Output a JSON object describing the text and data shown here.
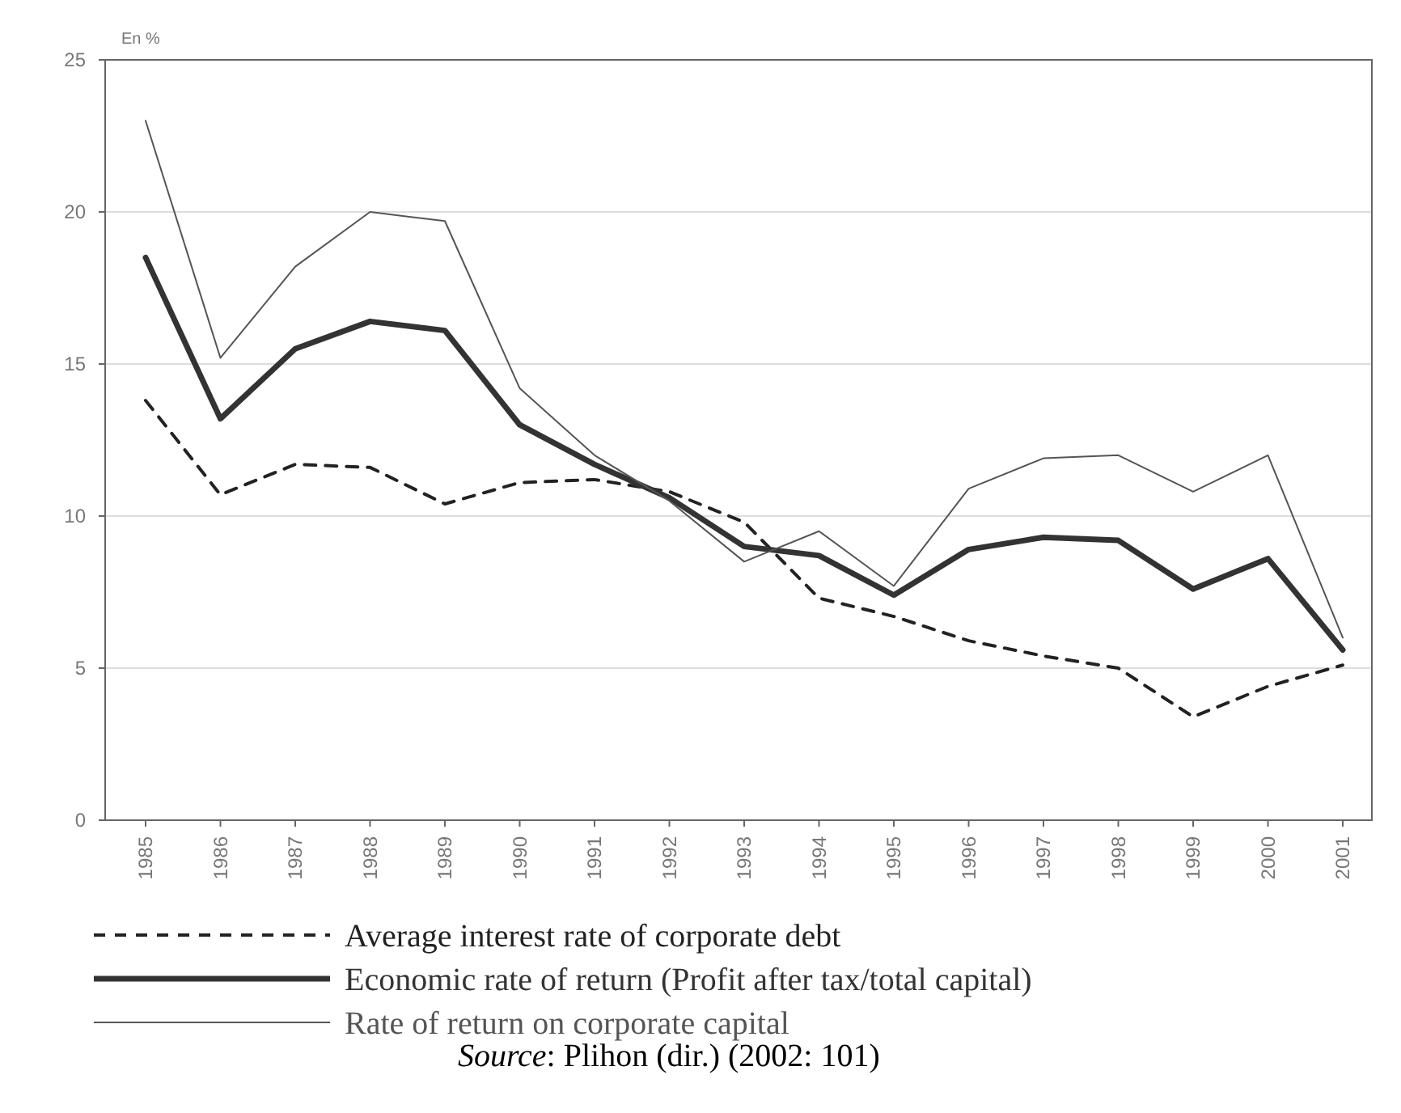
{
  "chart_data": {
    "type": "line",
    "ylabel": "En %",
    "categories": [
      "1985",
      "1986",
      "1987",
      "1988",
      "1989",
      "1990",
      "1991",
      "1992",
      "1993",
      "1994",
      "1995",
      "1996",
      "1997",
      "1998",
      "1999",
      "2000",
      "2001"
    ],
    "series": [
      {
        "name": "Average interest rate of corporate debt",
        "color": "#222222",
        "line_style": "dashed",
        "values": [
          13.8,
          10.7,
          11.7,
          11.6,
          10.4,
          11.1,
          11.2,
          10.8,
          9.8,
          7.3,
          6.7,
          5.9,
          5.4,
          5.0,
          3.4,
          4.4,
          5.1
        ]
      },
      {
        "name": "Economic rate of return (Profit after tax/total capital)",
        "color": "#333333",
        "line_style": "solid",
        "values": [
          18.5,
          13.2,
          15.5,
          16.4,
          16.1,
          13.0,
          11.7,
          10.6,
          9.0,
          8.7,
          7.4,
          8.9,
          9.3,
          9.2,
          7.6,
          8.6,
          5.6
        ]
      },
      {
        "name": "Rate of return on corporate capital",
        "color": "#555555",
        "line_style": "solid",
        "values": [
          23.0,
          15.2,
          18.2,
          20.0,
          19.7,
          14.2,
          12.0,
          10.5,
          8.5,
          9.5,
          7.7,
          10.9,
          11.9,
          12.0,
          10.8,
          12.0,
          6.0
        ]
      }
    ],
    "ylim": [
      0,
      25
    ],
    "yticks": [
      0,
      5,
      10,
      15,
      20,
      25
    ],
    "grid": "y",
    "legend": "bottom",
    "marker": "none",
    "annotations": [
      "Source: Plihon (dir.) (2002: 101)"
    ]
  }
}
